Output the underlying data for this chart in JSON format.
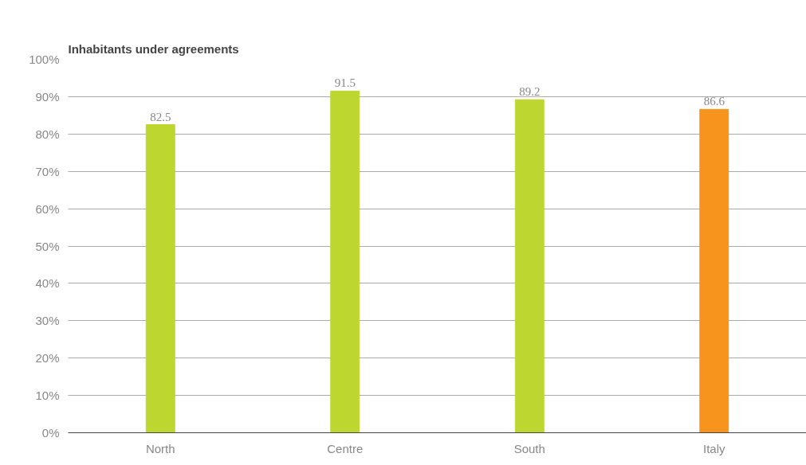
{
  "chart_data": {
    "type": "bar",
    "title": "Inhabitants under agreements",
    "categories": [
      "North",
      "Centre",
      "South",
      "Italy"
    ],
    "values": [
      82.5,
      91.5,
      89.2,
      86.6
    ],
    "colors": [
      "#bed630",
      "#bed630",
      "#bed630",
      "#f7941d"
    ],
    "ylim": [
      0,
      100
    ],
    "yticks": [
      {
        "value": 0,
        "label": "0%"
      },
      {
        "value": 10,
        "label": "10%"
      },
      {
        "value": 20,
        "label": "20%"
      },
      {
        "value": 30,
        "label": "30%"
      },
      {
        "value": 40,
        "label": "40%"
      },
      {
        "value": 50,
        "label": "50%"
      },
      {
        "value": 60,
        "label": "60%"
      },
      {
        "value": 70,
        "label": "70%"
      },
      {
        "value": 80,
        "label": "80%"
      },
      {
        "value": 90,
        "label": "90%"
      },
      {
        "value": 100,
        "label": "100%"
      }
    ],
    "grid": "y",
    "data_labels": true
  }
}
